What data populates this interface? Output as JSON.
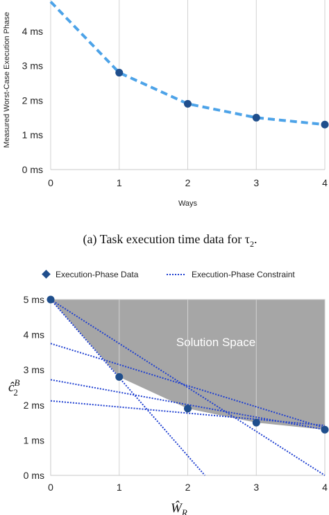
{
  "chart_data": [
    {
      "type": "line",
      "caption": "(a) Task execution time data for τ",
      "caption_sub": "2",
      "caption_end": ".",
      "xlabel": "Ways",
      "ylabel": "Measured Worst-Case Execution Phase",
      "x_ticks": [
        "0",
        "1",
        "2",
        "3",
        "4"
      ],
      "y_ticks": [
        "0 ms",
        "1 ms",
        "2 ms",
        "3 ms",
        "4 ms"
      ],
      "xlim": [
        0,
        4
      ],
      "ylim": [
        0,
        5
      ],
      "series": [
        {
          "x": [
            0,
            1,
            2,
            3,
            4
          ],
          "y": [
            4.85,
            2.8,
            1.9,
            1.5,
            1.3
          ],
          "marker_x": [
            1,
            2,
            3,
            4
          ],
          "color": "#4da3e8"
        }
      ],
      "marker_color": "#1f4e8c"
    },
    {
      "type": "line",
      "xlabel_main": "Ŵ",
      "xlabel_sub": "R",
      "ylabel_main": "ĉ",
      "ylabel_sup": "B",
      "ylabel_sub": "2",
      "x_ticks": [
        "0",
        "1",
        "2",
        "3",
        "4"
      ],
      "y_ticks": [
        "0 ms",
        "1 ms",
        "2 ms",
        "3 ms",
        "4 ms",
        "5 ms"
      ],
      "xlim": [
        0,
        4
      ],
      "ylim": [
        0,
        5
      ],
      "legend": {
        "placement": "top",
        "data_label": "Execution-Phase Data",
        "constraint_label": "Execution-Phase Constraint"
      },
      "region_label": "Solution Space",
      "region_color": "#a6a6a6",
      "data_points": {
        "x": [
          0,
          1,
          2,
          3,
          4
        ],
        "y": [
          5.0,
          2.8,
          1.9,
          1.5,
          1.3
        ]
      },
      "constraint_lines": [
        {
          "x1": 0,
          "y1": 5.0,
          "x2": 4,
          "y2": 0.0
        },
        {
          "x1": 0,
          "y1": 5.0,
          "x2": 2.25,
          "y2": 0.0
        },
        {
          "x1": 0,
          "y1": 3.75,
          "x2": 4,
          "y2": 1.35
        },
        {
          "x1": 0,
          "y1": 2.72,
          "x2": 4,
          "y2": 1.3
        },
        {
          "x1": 0,
          "y1": 2.12,
          "x2": 4,
          "y2": 1.42
        }
      ],
      "line_color": "#1e3fd1",
      "marker_color": "#1f4e8c"
    }
  ]
}
